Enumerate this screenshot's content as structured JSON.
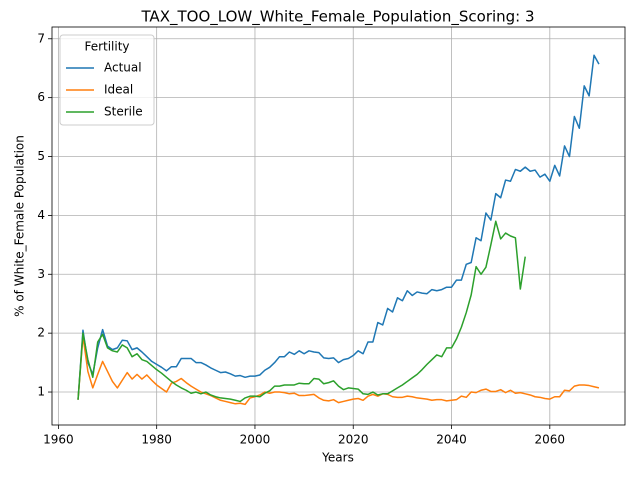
{
  "chart_data": {
    "type": "line",
    "title": "TAX_TOO_LOW_White_Female_Population_Scoring: 3",
    "xlabel": "Years",
    "ylabel": "% of White_Female Population",
    "legend_title": "Fertility",
    "legend": "upper left",
    "grid": true,
    "xlim": [
      1958.7,
      2075.3
    ],
    "xticks": [
      1960,
      1980,
      2000,
      2020,
      2040,
      2060
    ],
    "ylim": [
      0.44,
      7.2
    ],
    "yticks": [
      1,
      2,
      3,
      4,
      5,
      6,
      7
    ],
    "x": [
      1964,
      1965,
      1966,
      1967,
      1968,
      1969,
      1970,
      1971,
      1972,
      1973,
      1974,
      1975,
      1976,
      1977,
      1978,
      1979,
      1980,
      1981,
      1982,
      1983,
      1984,
      1985,
      1986,
      1987,
      1988,
      1989,
      1990,
      1991,
      1992,
      1993,
      1994,
      1995,
      1996,
      1997,
      1998,
      1999,
      2000,
      2001,
      2002,
      2003,
      2004,
      2005,
      2006,
      2007,
      2008,
      2009,
      2010,
      2011,
      2012,
      2013,
      2014,
      2015,
      2016,
      2017,
      2018,
      2019,
      2020,
      2021,
      2022,
      2023,
      2024,
      2025,
      2026,
      2027,
      2028,
      2029,
      2030,
      2031,
      2032,
      2033,
      2034,
      2035,
      2036,
      2037,
      2038,
      2039,
      2040,
      2041,
      2042,
      2043,
      2044,
      2045,
      2046,
      2047,
      2048,
      2049,
      2050,
      2051,
      2052,
      2053,
      2054,
      2055,
      2056,
      2057,
      2058,
      2059,
      2060,
      2061,
      2062,
      2063,
      2064,
      2065,
      2066,
      2067,
      2068,
      2069,
      2070
    ],
    "series": [
      {
        "name": "Actual",
        "color": "#1f77b4",
        "values": [
          0.87,
          2.05,
          1.5,
          1.3,
          1.75,
          2.06,
          1.78,
          1.72,
          1.75,
          1.88,
          1.87,
          1.72,
          1.75,
          1.68,
          1.6,
          1.52,
          1.47,
          1.42,
          1.36,
          1.43,
          1.43,
          1.57,
          1.57,
          1.57,
          1.5,
          1.5,
          1.46,
          1.41,
          1.37,
          1.33,
          1.34,
          1.31,
          1.27,
          1.28,
          1.25,
          1.27,
          1.27,
          1.29,
          1.37,
          1.42,
          1.5,
          1.6,
          1.6,
          1.68,
          1.64,
          1.7,
          1.65,
          1.7,
          1.68,
          1.67,
          1.58,
          1.57,
          1.58,
          1.5,
          1.55,
          1.57,
          1.62,
          1.7,
          1.65,
          1.85,
          1.85,
          2.18,
          2.14,
          2.42,
          2.36,
          2.6,
          2.55,
          2.72,
          2.64,
          2.7,
          2.68,
          2.67,
          2.74,
          2.72,
          2.74,
          2.78,
          2.78,
          2.9,
          2.9,
          3.17,
          3.2,
          3.62,
          3.57,
          4.04,
          3.92,
          4.37,
          4.3,
          4.6,
          4.58,
          4.78,
          4.75,
          4.82,
          4.75,
          4.77,
          4.65,
          4.7,
          4.58,
          4.85,
          4.67,
          5.18,
          5.0,
          5.68,
          5.48,
          6.2,
          6.03,
          6.72,
          6.57
        ]
      },
      {
        "name": "Ideal",
        "color": "#ff7f0e",
        "values": [
          0.87,
          1.95,
          1.35,
          1.07,
          1.3,
          1.52,
          1.35,
          1.18,
          1.07,
          1.2,
          1.33,
          1.22,
          1.3,
          1.22,
          1.29,
          1.2,
          1.12,
          1.06,
          1.0,
          1.15,
          1.18,
          1.23,
          1.16,
          1.1,
          1.05,
          1.0,
          0.97,
          0.94,
          0.9,
          0.86,
          0.84,
          0.82,
          0.8,
          0.81,
          0.79,
          0.9,
          0.92,
          0.95,
          1.0,
          0.98,
          1.0,
          1.0,
          0.99,
          0.97,
          0.98,
          0.94,
          0.94,
          0.95,
          0.96,
          0.9,
          0.86,
          0.85,
          0.87,
          0.82,
          0.84,
          0.86,
          0.88,
          0.89,
          0.86,
          0.93,
          0.96,
          0.93,
          0.97,
          0.96,
          0.92,
          0.91,
          0.91,
          0.93,
          0.92,
          0.9,
          0.89,
          0.88,
          0.86,
          0.87,
          0.87,
          0.85,
          0.86,
          0.87,
          0.93,
          0.91,
          1.0,
          0.99,
          1.03,
          1.05,
          1.01,
          1.01,
          1.04,
          0.99,
          1.03,
          0.98,
          0.99,
          0.97,
          0.95,
          0.92,
          0.91,
          0.89,
          0.88,
          0.92,
          0.92,
          1.03,
          1.02,
          1.1,
          1.12,
          1.12,
          1.11,
          1.09,
          1.07
        ]
      },
      {
        "name": "Sterile",
        "color": "#2ca02c",
        "values": [
          0.87,
          2.0,
          1.55,
          1.25,
          1.85,
          1.98,
          1.75,
          1.7,
          1.68,
          1.8,
          1.75,
          1.6,
          1.65,
          1.55,
          1.52,
          1.45,
          1.38,
          1.32,
          1.25,
          1.18,
          1.12,
          1.07,
          1.03,
          0.98,
          1.0,
          0.97,
          1.0,
          0.95,
          0.92,
          0.9,
          0.89,
          0.88,
          0.86,
          0.84,
          0.9,
          0.93,
          0.93,
          0.92,
          0.98,
          1.02,
          1.1,
          1.1,
          1.12,
          1.12,
          1.12,
          1.15,
          1.14,
          1.14,
          1.23,
          1.22,
          1.14,
          1.16,
          1.19,
          1.1,
          1.04,
          1.07,
          1.06,
          1.05,
          0.97,
          0.96,
          1.0,
          0.95,
          0.97,
          0.97,
          1.02,
          1.07,
          1.12,
          1.18,
          1.24,
          1.3,
          1.38,
          1.47,
          1.55,
          1.63,
          1.6,
          1.75,
          1.75,
          1.9,
          2.1,
          2.35,
          2.65,
          3.13,
          3.0,
          3.12,
          3.5,
          3.9,
          3.6,
          3.7,
          3.65,
          3.62,
          2.75,
          3.3,
          null,
          null,
          null,
          null,
          null,
          null,
          null,
          null,
          null,
          null,
          null,
          null,
          null,
          null,
          null
        ]
      }
    ]
  }
}
